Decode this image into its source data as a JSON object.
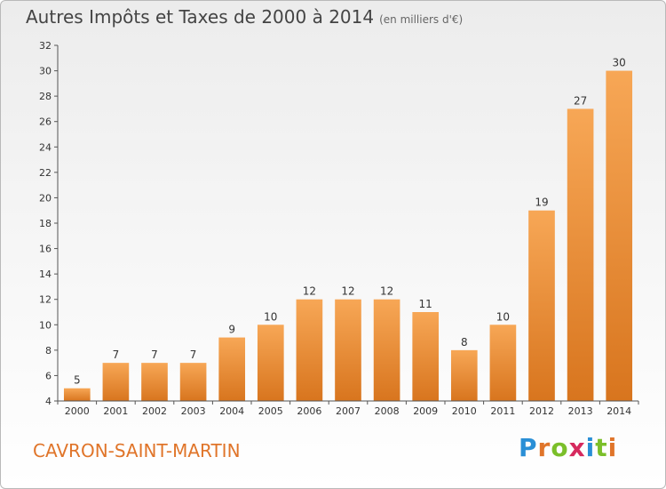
{
  "header": {
    "title": "Autres Impôts et Taxes de 2000 à 2014",
    "subtitle": "(en milliers d'€)"
  },
  "footer": {
    "commune": "CAVRON-SAINT-MARTIN",
    "brand": "Proxiti"
  },
  "colors": {
    "bar_light": "#f7a756",
    "bar_dark": "#d8751e",
    "commune_text": "#e0752a"
  },
  "chart_data": {
    "type": "bar",
    "title": "Autres Impôts et Taxes de 2000 à 2014",
    "subtitle": "(en milliers d'€)",
    "categories": [
      "2000",
      "2001",
      "2002",
      "2003",
      "2004",
      "2005",
      "2006",
      "2007",
      "2008",
      "2009",
      "2010",
      "2011",
      "2012",
      "2013",
      "2014"
    ],
    "values": [
      5,
      7,
      7,
      7,
      9,
      10,
      12,
      12,
      12,
      11,
      8,
      10,
      19,
      27,
      30
    ],
    "xlabel": "",
    "ylabel": "",
    "ylim": [
      4,
      32
    ],
    "yticks": [
      4,
      6,
      8,
      10,
      12,
      14,
      16,
      18,
      20,
      22,
      24,
      26,
      28,
      30,
      32
    ],
    "grid": false,
    "legend": "none"
  }
}
